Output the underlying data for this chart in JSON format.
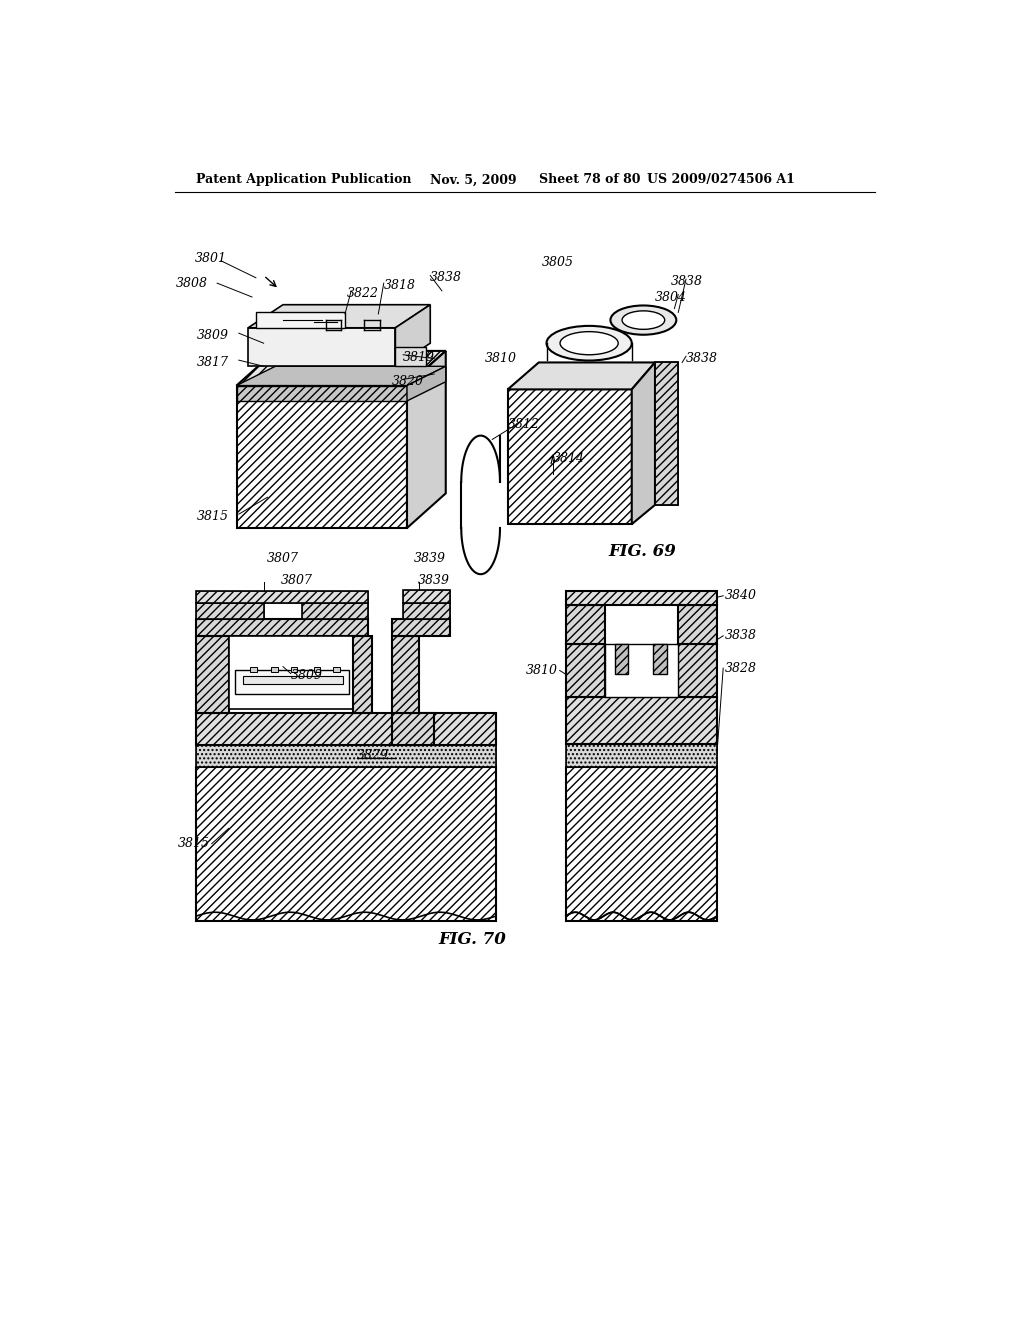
{
  "background_color": "#ffffff",
  "header_text": "Patent Application Publication",
  "header_date": "Nov. 5, 2009",
  "header_sheet": "Sheet 78 of 80",
  "header_patent": "US 2009/0274506 A1",
  "fig69_label": "FIG. 69",
  "fig70_label": "FIG. 70",
  "line_color": "#000000",
  "text_color": "#000000",
  "label_fontsize": 9,
  "header_fontsize": 9,
  "fig_label_fontsize": 12
}
